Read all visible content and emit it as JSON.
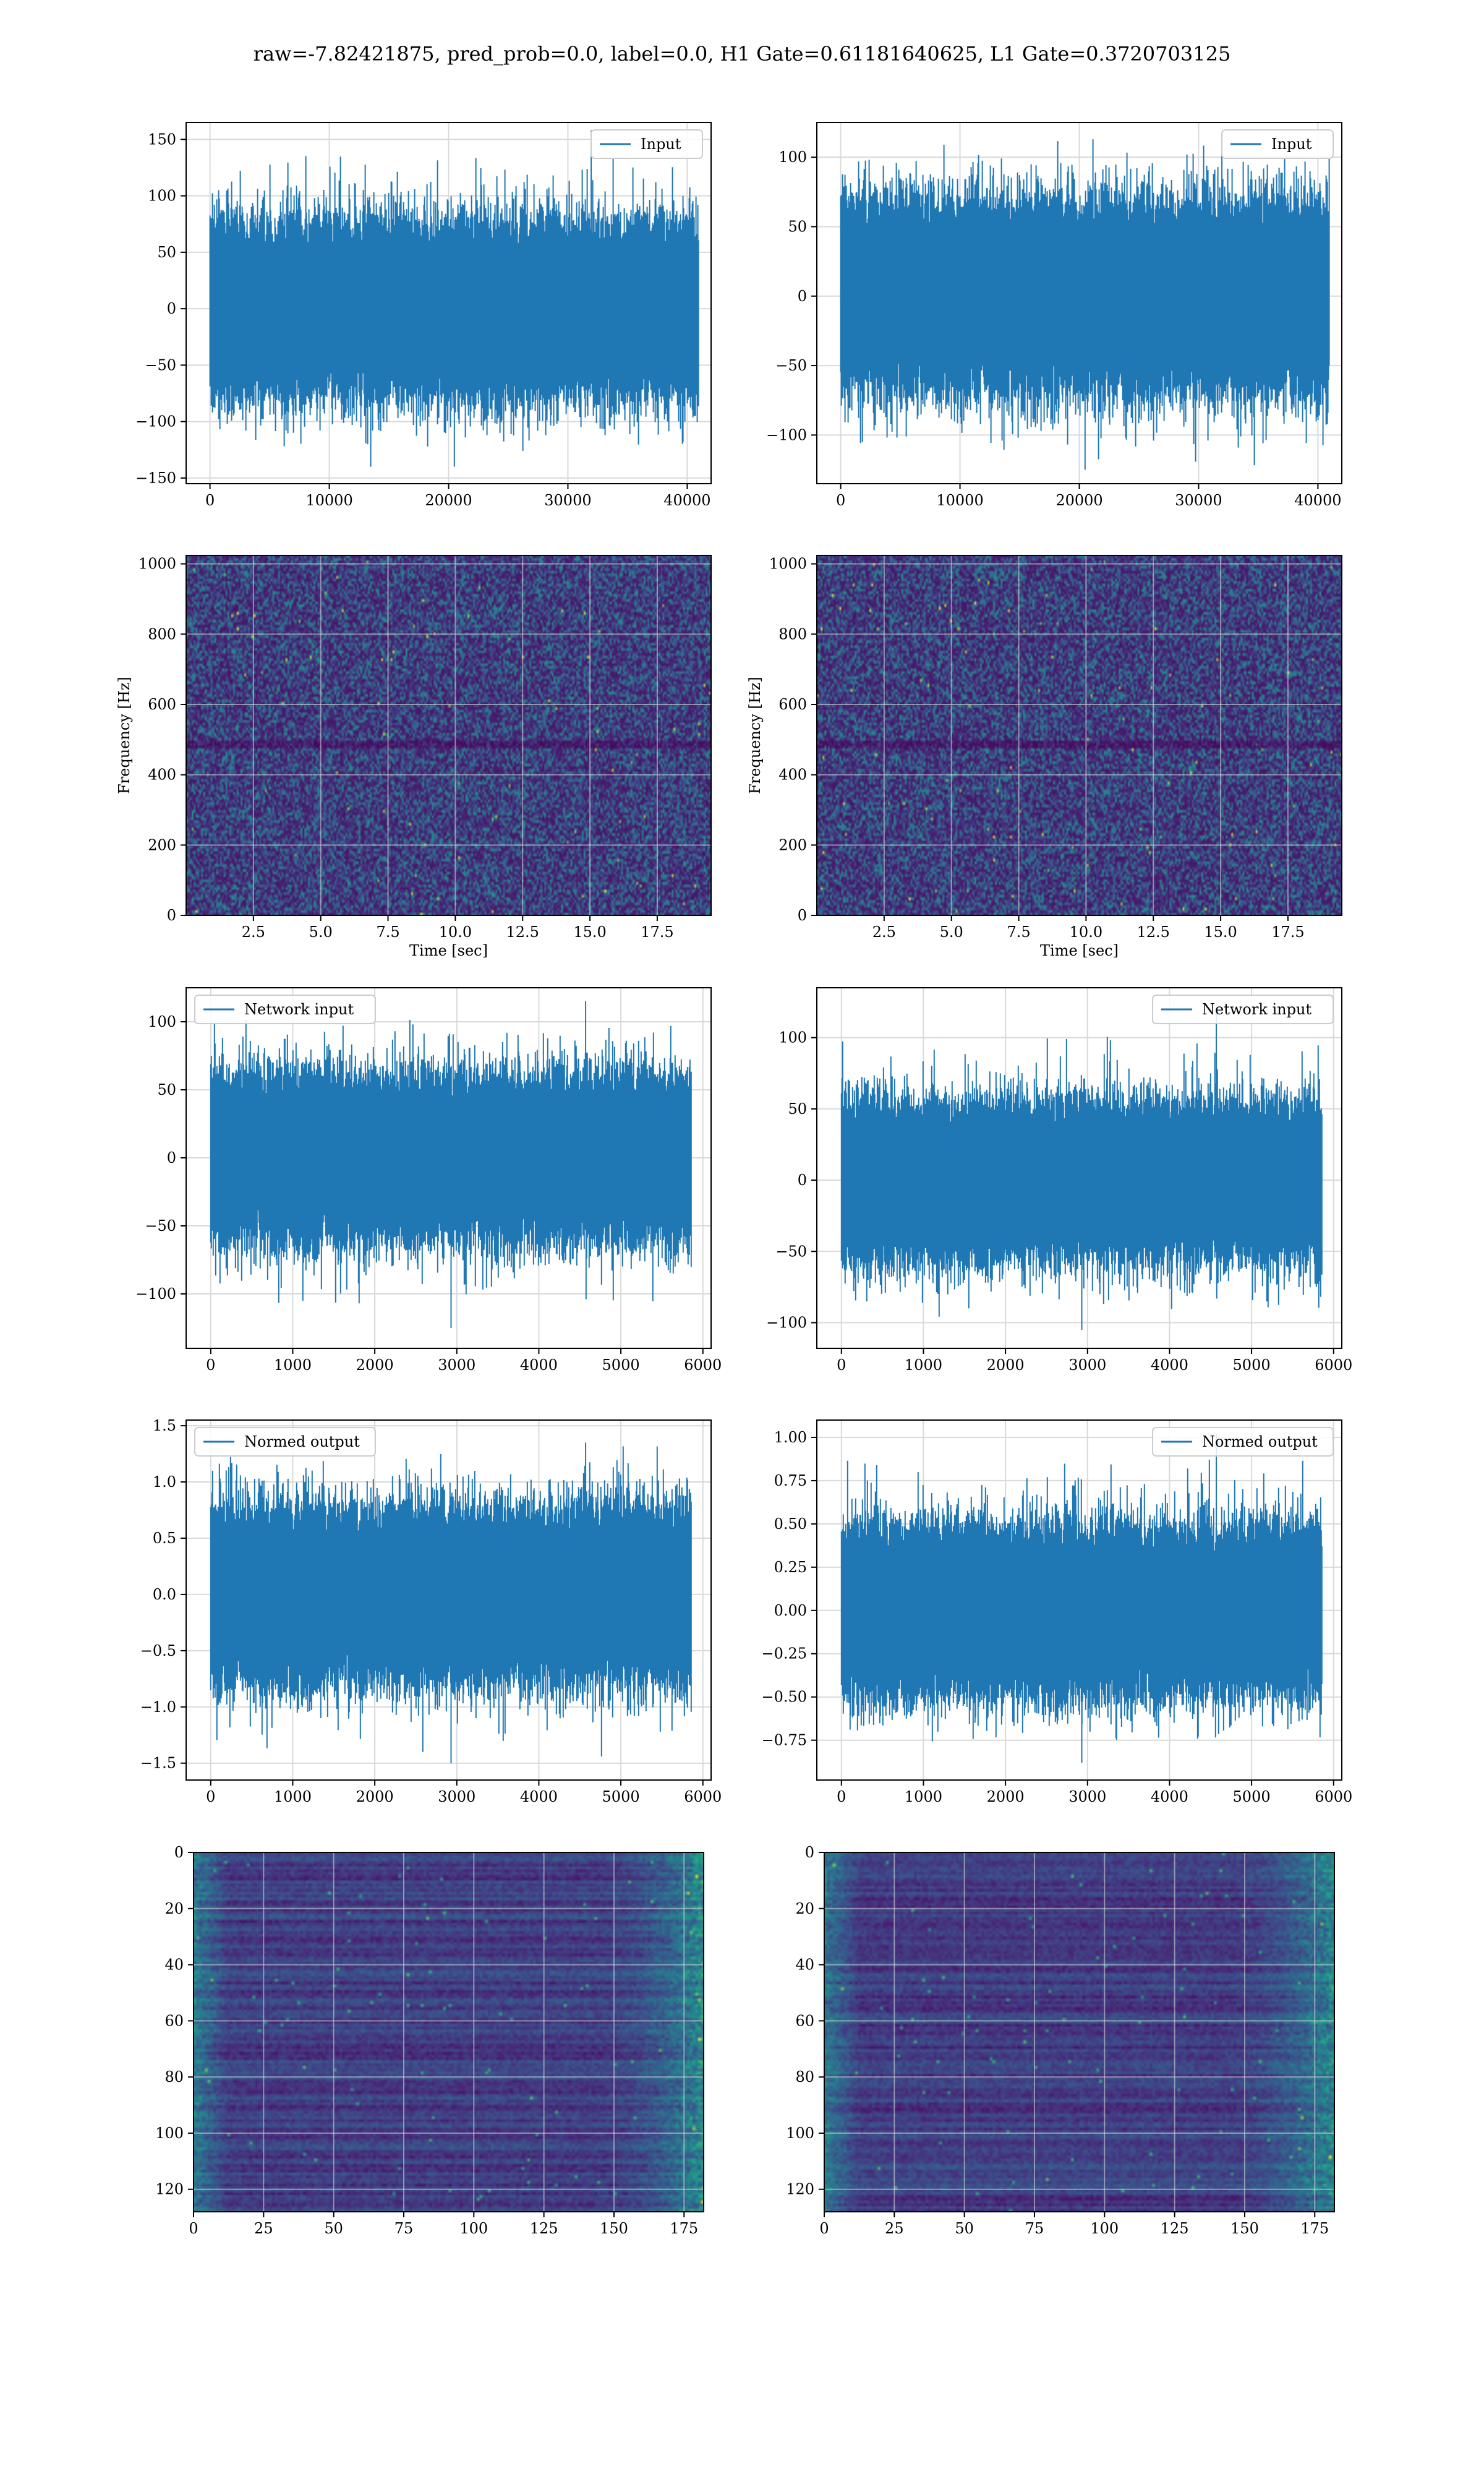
{
  "figure": {
    "title": "raw=-7.82421875, pred_prob=0.0, label=0.0, H1 Gate=0.61181640625, L1 Gate=0.3720703125"
  },
  "colors": {
    "line": "#1f77b4",
    "grid": "#d9d9d9",
    "axes": "#000000",
    "viridis_low": "#440154",
    "viridis_high": "#fde725"
  },
  "chart_data": [
    {
      "id": "input-h1",
      "type": "line",
      "xlabel": "",
      "ylabel": "",
      "xlim": [
        -2000,
        42000
      ],
      "ylim": [
        -155,
        165
      ],
      "xticks": [
        0,
        10000,
        20000,
        30000,
        40000
      ],
      "xtick_labels": [
        "0",
        "10000",
        "20000",
        "30000",
        "40000"
      ],
      "yticks": [
        -150,
        -100,
        -50,
        0,
        50,
        100,
        150
      ],
      "ytick_labels": [
        "−150",
        "−100",
        "−50",
        "0",
        "50",
        "100",
        "150"
      ],
      "grid": true,
      "legend": "top-right",
      "series": [
        {
          "name": "Input",
          "x_range": [
            0,
            40960
          ],
          "envelope": {
            "center": 0,
            "band": [
              -45,
              45
            ],
            "max": 158,
            "min": -140
          }
        }
      ]
    },
    {
      "id": "input-l1",
      "type": "line",
      "xlabel": "",
      "ylabel": "",
      "xlim": [
        -2000,
        42000
      ],
      "ylim": [
        -135,
        125
      ],
      "xticks": [
        0,
        10000,
        20000,
        30000,
        40000
      ],
      "xtick_labels": [
        "0",
        "10000",
        "20000",
        "30000",
        "40000"
      ],
      "yticks": [
        -100,
        -50,
        0,
        50,
        100
      ],
      "ytick_labels": [
        "−100",
        "−50",
        "0",
        "50",
        "100"
      ],
      "grid": true,
      "legend": "top-right",
      "series": [
        {
          "name": "Input",
          "x_range": [
            0,
            40960
          ],
          "envelope": {
            "center": 0,
            "band": [
              -40,
              40
            ],
            "max": 117,
            "min": -125
          }
        }
      ]
    },
    {
      "id": "spectrogram-h1",
      "type": "heatmap",
      "xlabel": "Time [sec]",
      "ylabel": "Frequency [Hz]",
      "xlim": [
        0,
        19.5
      ],
      "ylim": [
        0,
        1024
      ],
      "xticks": [
        2.5,
        5.0,
        7.5,
        10.0,
        12.5,
        15.0,
        17.5
      ],
      "xtick_labels": [
        "2.5",
        "5.0",
        "7.5",
        "10.0",
        "12.5",
        "15.0",
        "17.5"
      ],
      "yticks": [
        0,
        200,
        400,
        600,
        800,
        1000
      ],
      "ytick_labels": [
        "0",
        "200",
        "400",
        "600",
        "800",
        "1000"
      ],
      "grid": true,
      "colormap": "viridis"
    },
    {
      "id": "spectrogram-l1",
      "type": "heatmap",
      "xlabel": "Time [sec]",
      "ylabel": "Frequency [Hz]",
      "xlim": [
        0,
        19.5
      ],
      "ylim": [
        0,
        1024
      ],
      "xticks": [
        2.5,
        5.0,
        7.5,
        10.0,
        12.5,
        15.0,
        17.5
      ],
      "xtick_labels": [
        "2.5",
        "5.0",
        "7.5",
        "10.0",
        "12.5",
        "15.0",
        "17.5"
      ],
      "yticks": [
        0,
        200,
        400,
        600,
        800,
        1000
      ],
      "ytick_labels": [
        "0",
        "200",
        "400",
        "600",
        "800",
        "1000"
      ],
      "grid": true,
      "colormap": "viridis"
    },
    {
      "id": "network-input-h1",
      "type": "line",
      "xlabel": "",
      "ylabel": "",
      "xlim": [
        -300,
        6100
      ],
      "ylim": [
        -140,
        125
      ],
      "xticks": [
        0,
        1000,
        2000,
        3000,
        4000,
        5000,
        6000
      ],
      "xtick_labels": [
        "0",
        "1000",
        "2000",
        "3000",
        "4000",
        "5000",
        "6000"
      ],
      "yticks": [
        -100,
        -50,
        0,
        50,
        100
      ],
      "ytick_labels": [
        "−100",
        "−50",
        "0",
        "50",
        "100"
      ],
      "grid": true,
      "legend": "top-left",
      "series": [
        {
          "name": "Network input",
          "x_range": [
            0,
            5860
          ],
          "envelope": {
            "center": 0,
            "band": [
              -35,
              35
            ],
            "max": 115,
            "min": -125
          }
        }
      ]
    },
    {
      "id": "network-input-l1",
      "type": "line",
      "xlabel": "",
      "ylabel": "",
      "xlim": [
        -300,
        6100
      ],
      "ylim": [
        -118,
        135
      ],
      "xticks": [
        0,
        1000,
        2000,
        3000,
        4000,
        5000,
        6000
      ],
      "xtick_labels": [
        "0",
        "1000",
        "2000",
        "3000",
        "4000",
        "5000",
        "6000"
      ],
      "yticks": [
        -100,
        -50,
        0,
        50,
        100
      ],
      "ytick_labels": [
        "−100",
        "−50",
        "0",
        "50",
        "100"
      ],
      "grid": true,
      "legend": "top-right",
      "series": [
        {
          "name": "Network input",
          "x_range": [
            0,
            5860
          ],
          "envelope": {
            "center": 0,
            "band": [
              -32,
              32
            ],
            "max": 118,
            "min": -105
          }
        }
      ]
    },
    {
      "id": "normed-output-h1",
      "type": "line",
      "xlabel": "",
      "ylabel": "",
      "xlim": [
        -300,
        6100
      ],
      "ylim": [
        -1.65,
        1.55
      ],
      "xticks": [
        0,
        1000,
        2000,
        3000,
        4000,
        5000,
        6000
      ],
      "xtick_labels": [
        "0",
        "1000",
        "2000",
        "3000",
        "4000",
        "5000",
        "6000"
      ],
      "yticks": [
        -1.5,
        -1.0,
        -0.5,
        0.0,
        0.5,
        1.0,
        1.5
      ],
      "ytick_labels": [
        "−1.5",
        "−1.0",
        "−0.5",
        "0.0",
        "0.5",
        "1.0",
        "1.5"
      ],
      "grid": true,
      "legend": "top-left",
      "series": [
        {
          "name": "Normed output",
          "x_range": [
            0,
            5860
          ],
          "envelope": {
            "center": 0,
            "band": [
              -0.45,
              0.45
            ],
            "max": 1.35,
            "min": -1.5
          }
        }
      ]
    },
    {
      "id": "normed-output-l1",
      "type": "line",
      "xlabel": "",
      "ylabel": "",
      "xlim": [
        -300,
        6100
      ],
      "ylim": [
        -0.98,
        1.1
      ],
      "xticks": [
        0,
        1000,
        2000,
        3000,
        4000,
        5000,
        6000
      ],
      "xtick_labels": [
        "0",
        "1000",
        "2000",
        "3000",
        "4000",
        "5000",
        "6000"
      ],
      "yticks": [
        -0.75,
        -0.5,
        -0.25,
        0.0,
        0.25,
        0.5,
        0.75,
        1.0
      ],
      "ytick_labels": [
        "−0.75",
        "−0.50",
        "−0.25",
        "0.00",
        "0.25",
        "0.50",
        "0.75",
        "1.00"
      ],
      "grid": true,
      "legend": "top-right",
      "series": [
        {
          "name": "Normed output",
          "x_range": [
            0,
            5860
          ],
          "envelope": {
            "center": 0,
            "band": [
              -0.28,
              0.28
            ],
            "max": 1.02,
            "min": -0.88
          }
        }
      ]
    },
    {
      "id": "feature-map-h1",
      "type": "heatmap",
      "xlabel": "",
      "ylabel": "",
      "xlim": [
        0,
        182
      ],
      "ylim": [
        128,
        0
      ],
      "xticks": [
        0,
        25,
        50,
        75,
        100,
        125,
        150,
        175
      ],
      "xtick_labels": [
        "0",
        "25",
        "50",
        "75",
        "100",
        "125",
        "150",
        "175"
      ],
      "yticks": [
        0,
        20,
        40,
        60,
        80,
        100,
        120
      ],
      "ytick_labels": [
        "0",
        "20",
        "40",
        "60",
        "80",
        "100",
        "120"
      ],
      "grid": true,
      "colormap": "viridis",
      "rows": 128,
      "cols": 182
    },
    {
      "id": "feature-map-l1",
      "type": "heatmap",
      "xlabel": "",
      "ylabel": "",
      "xlim": [
        0,
        182
      ],
      "ylim": [
        128,
        0
      ],
      "xticks": [
        0,
        25,
        50,
        75,
        100,
        125,
        150,
        175
      ],
      "xtick_labels": [
        "0",
        "25",
        "50",
        "75",
        "100",
        "125",
        "150",
        "175"
      ],
      "yticks": [
        0,
        20,
        40,
        60,
        80,
        100,
        120
      ],
      "ytick_labels": [
        "0",
        "20",
        "40",
        "60",
        "80",
        "100",
        "120"
      ],
      "grid": true,
      "colormap": "viridis",
      "rows": 128,
      "cols": 182
    }
  ]
}
